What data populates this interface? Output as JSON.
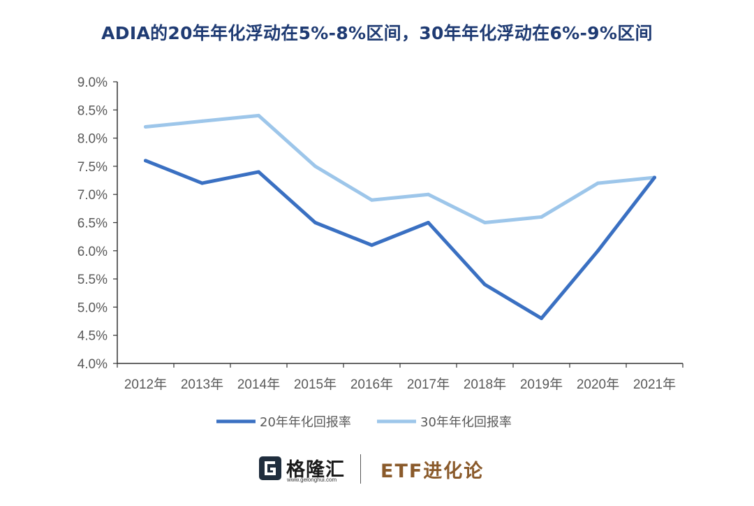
{
  "title": "ADIA的20年年化浮动在5%-8%区间，30年年化浮动在6%-9%区间",
  "chart_data": {
    "type": "line",
    "title": "ADIA的20年年化浮动在5%-8%区间，30年年化浮动在6%-9%区间",
    "categories": [
      "2012年",
      "2013年",
      "2014年",
      "2015年",
      "2016年",
      "2017年",
      "2018年",
      "2019年",
      "2020年",
      "2021年"
    ],
    "series": [
      {
        "name": "20年年化回报率",
        "color": "#3a70c2",
        "values": [
          7.6,
          7.2,
          7.4,
          6.5,
          6.1,
          6.5,
          5.4,
          4.8,
          6.0,
          7.3
        ]
      },
      {
        "name": "30年年化回报率",
        "color": "#9dc6ea",
        "values": [
          8.2,
          8.3,
          8.4,
          7.5,
          6.9,
          7.0,
          6.5,
          6.6,
          7.2,
          7.3
        ]
      }
    ],
    "ylim": [
      4.0,
      9.0
    ],
    "yticks": [
      "4.0%",
      "4.5%",
      "5.0%",
      "5.5%",
      "6.0%",
      "6.5%",
      "7.0%",
      "7.5%",
      "8.0%",
      "8.5%",
      "9.0%"
    ],
    "xlabel": "",
    "ylabel": "",
    "grid": false,
    "legend_position": "bottom"
  },
  "footer": {
    "brand": "格隆汇",
    "brand_url": "www.gelonghui.com",
    "logo_icon": "g-logo-icon",
    "etf_label": "ETF进化论",
    "etf_color": "#8a5a2b"
  }
}
